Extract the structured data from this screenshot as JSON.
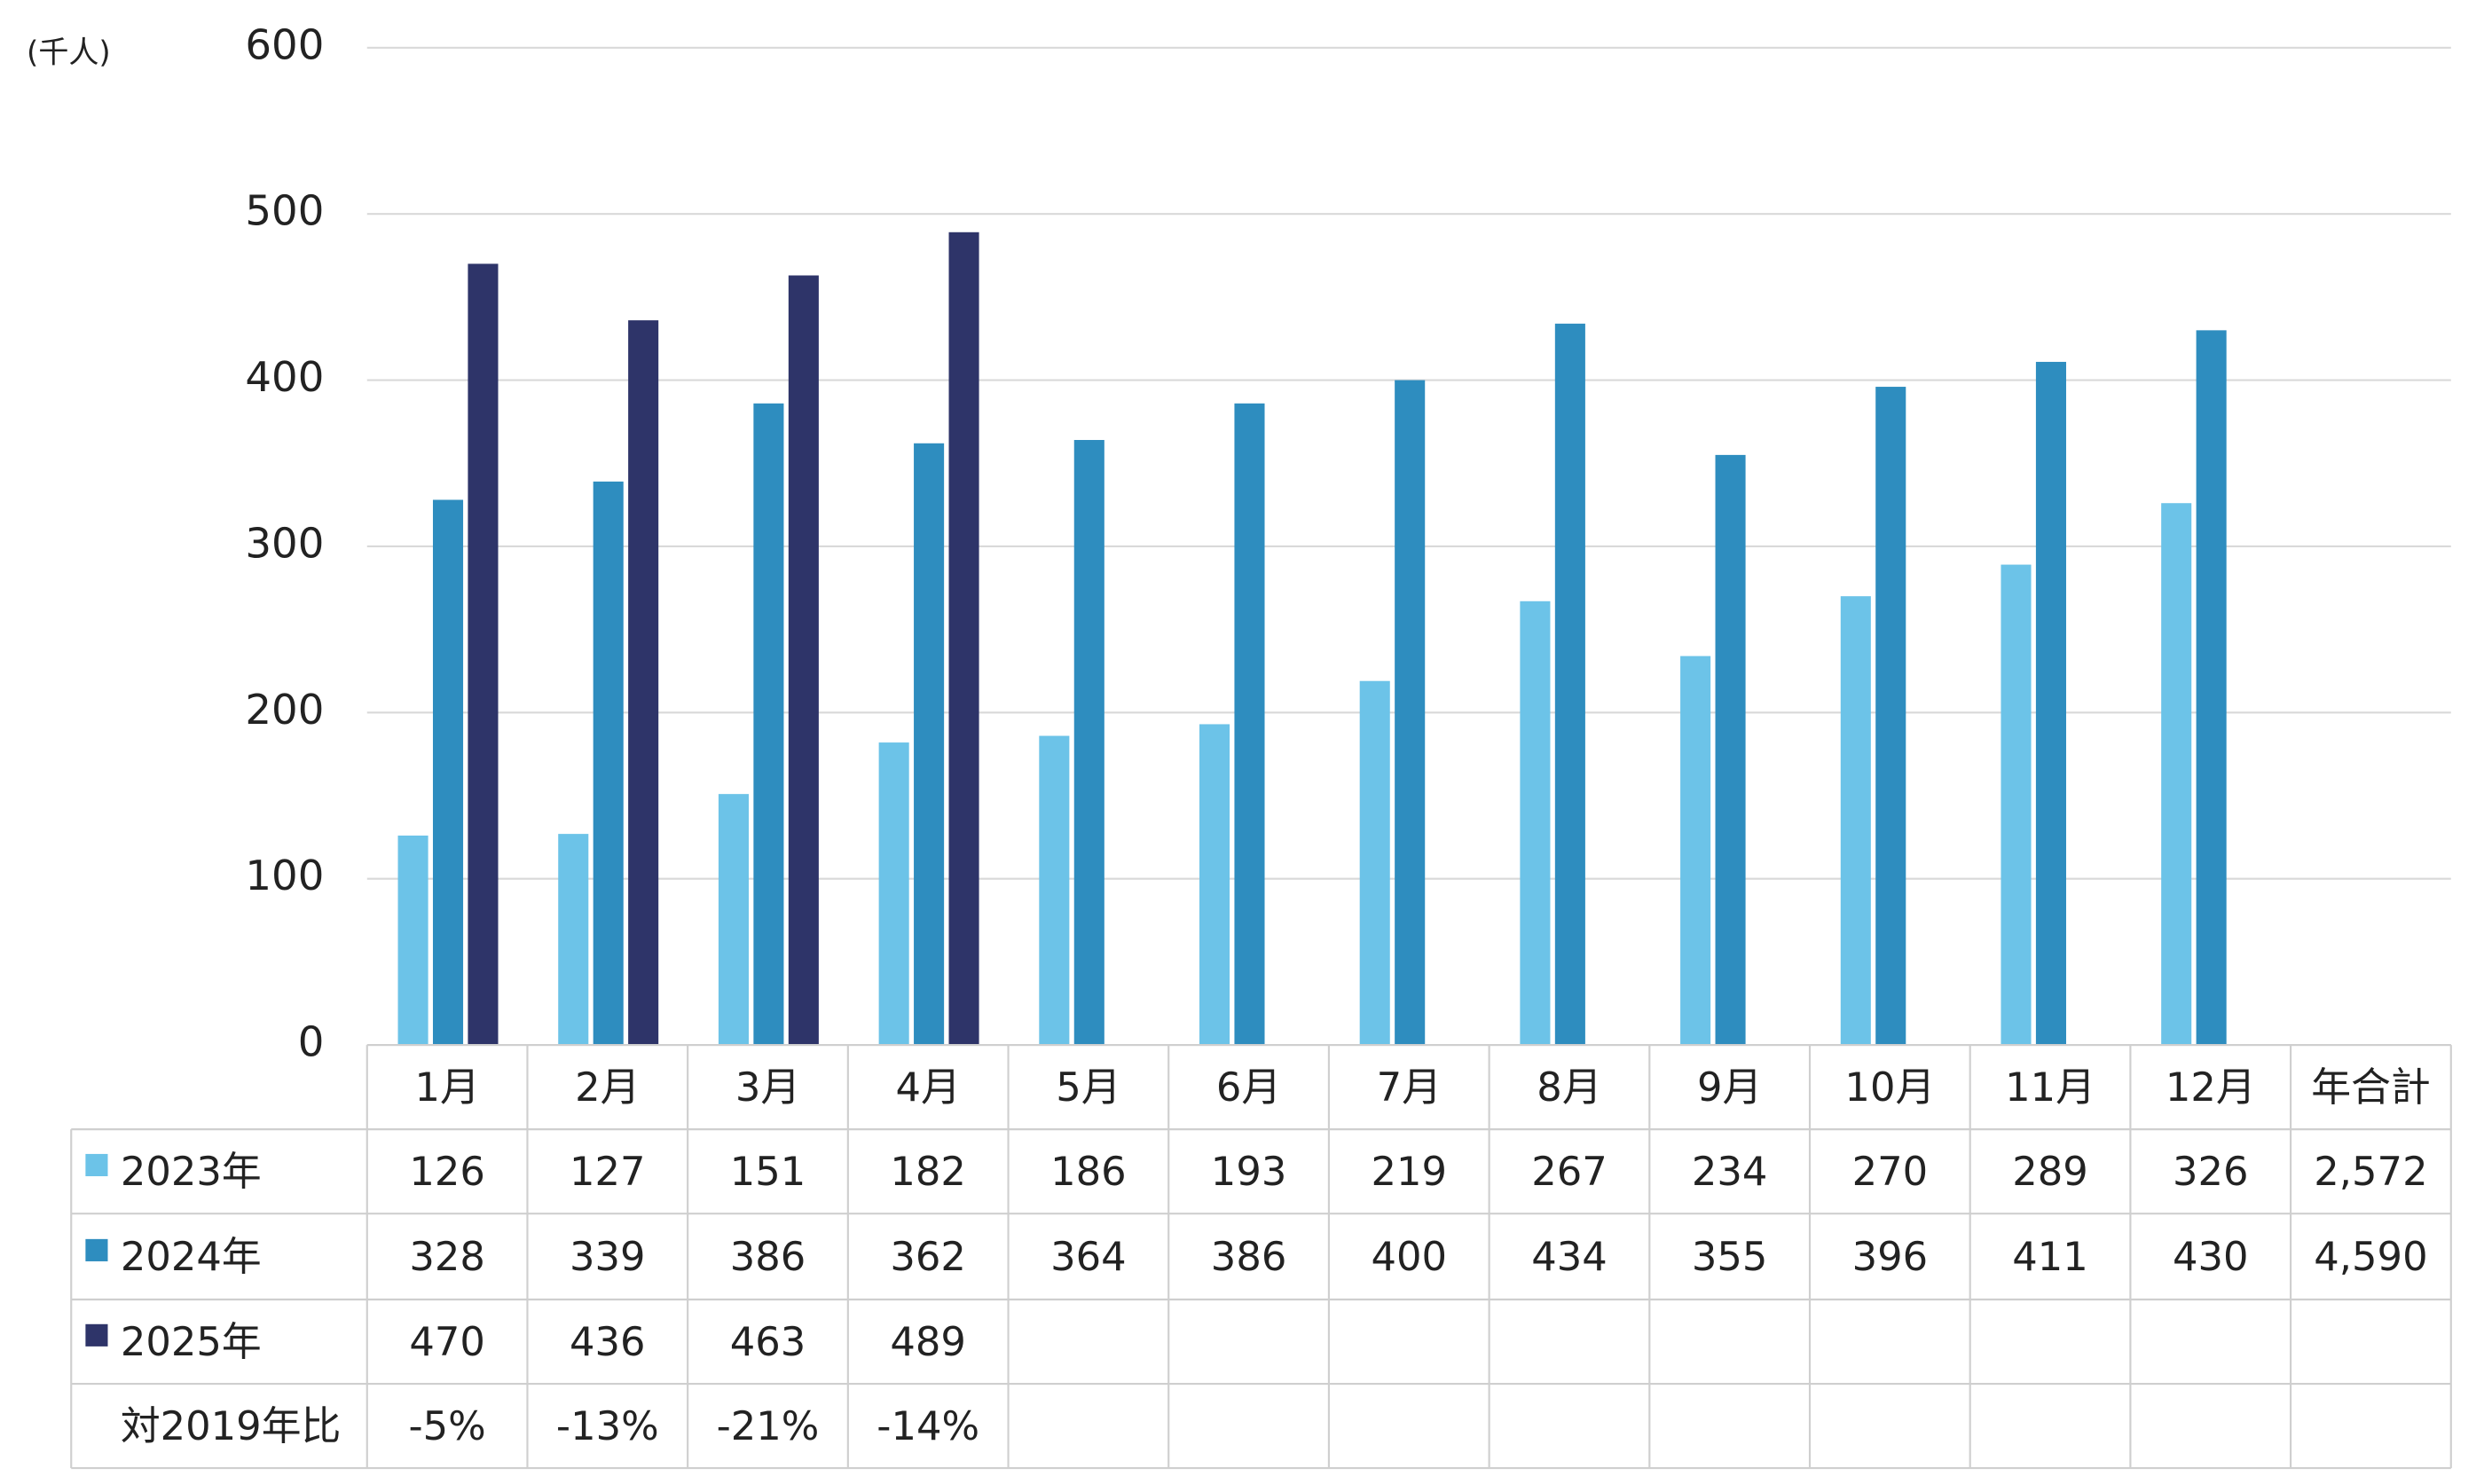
{
  "chart_data": {
    "type": "bar",
    "y_unit": "(千人)",
    "categories": [
      "1月",
      "2月",
      "3月",
      "4月",
      "5月",
      "6月",
      "7月",
      "8月",
      "9月",
      "10月",
      "11月",
      "12月"
    ],
    "total_header": "年合計",
    "series": [
      {
        "name": "2023年",
        "color": "#6cc3e8",
        "values": [
          126,
          127,
          151,
          182,
          186,
          193,
          219,
          267,
          234,
          270,
          289,
          326
        ],
        "total": {
          "value": 2572,
          "label": "2,572"
        }
      },
      {
        "name": "2024年",
        "color": "#2e8dbf",
        "values": [
          328,
          339,
          386,
          362,
          364,
          386,
          400,
          434,
          355,
          396,
          411,
          430
        ],
        "total": {
          "value": 4590,
          "label": "4,590"
        }
      },
      {
        "name": "2025年",
        "color": "#2e3469",
        "values": [
          470,
          436,
          463,
          489,
          null,
          null,
          null,
          null,
          null,
          null,
          null,
          null
        ]
      }
    ],
    "ratio_row": {
      "name": "対2019年比",
      "values": [
        -5,
        -13,
        -21,
        -14
      ],
      "value_labels": [
        "-5%",
        "-13%",
        "-21%",
        "-14%"
      ]
    },
    "ylim": [
      0,
      600
    ],
    "yticks": [
      0,
      100,
      200,
      300,
      400,
      500,
      600
    ],
    "grid": true
  }
}
